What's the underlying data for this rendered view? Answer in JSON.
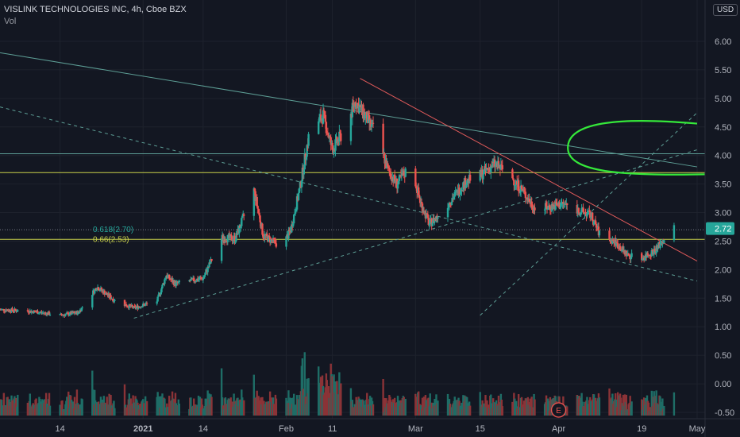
{
  "header": {
    "title": "VISLINK TECHNOLOGIES INC, 4h, Cboe BZX",
    "vol_label": "Vol",
    "currency": "USD"
  },
  "colors": {
    "background": "#131722",
    "up": "#26a69a",
    "down": "#ef5350",
    "vol_up": "#1e6d66",
    "vol_down": "#8b3337",
    "trend_red": "#e05a5a",
    "trend_teal": "#5d9e95",
    "fib_yellow": "#c9d14b",
    "highlight_green": "#35e83a",
    "price_tag": "#26a69a"
  },
  "chart_data": {
    "type": "candlestick",
    "title": "VISLINK TECHNOLOGIES INC, 4h, Cboe BZX",
    "ylim": [
      -0.6,
      6.3
    ],
    "y_ticks": [
      "6.00",
      "5.50",
      "5.00",
      "4.50",
      "4.00",
      "3.50",
      "3.00",
      "2.50",
      "2.00",
      "1.50",
      "1.00",
      "0.50",
      "0.00",
      "-0.50"
    ],
    "x_ticks": [
      {
        "label": "14",
        "date": "2020-12-14"
      },
      {
        "label": "2021",
        "date": "2021-01-01"
      },
      {
        "label": "14",
        "date": "2021-01-14"
      },
      {
        "label": "Feb",
        "date": "2021-02-01"
      },
      {
        "label": "11",
        "date": "2021-02-11"
      },
      {
        "label": "Mar",
        "date": "2021-03-01"
      },
      {
        "label": "15",
        "date": "2021-03-15"
      },
      {
        "label": "Apr",
        "date": "2021-04-01"
      },
      {
        "label": "19",
        "date": "2021-04-19"
      },
      {
        "label": "May",
        "date": "2021-05-01"
      }
    ],
    "date_range": [
      "2020-12-01",
      "2021-05-01"
    ],
    "close_path": [
      [
        "2020-12-01",
        1.3
      ],
      [
        "2020-12-08",
        1.27
      ],
      [
        "2020-12-14",
        1.2
      ],
      [
        "2020-12-18",
        1.25
      ],
      [
        "2020-12-22",
        1.7
      ],
      [
        "2020-12-26",
        1.45
      ],
      [
        "2020-12-30",
        1.33
      ],
      [
        "2021-01-04",
        1.45
      ],
      [
        "2021-01-06",
        1.9
      ],
      [
        "2021-01-08",
        1.75
      ],
      [
        "2021-01-14",
        1.85
      ],
      [
        "2021-01-18",
        2.55
      ],
      [
        "2021-01-21",
        2.55
      ],
      [
        "2021-01-25",
        3.4
      ],
      [
        "2021-01-27",
        2.6
      ],
      [
        "2021-01-31",
        2.4
      ],
      [
        "2021-02-02",
        2.7
      ],
      [
        "2021-02-04",
        3.45
      ],
      [
        "2021-02-06",
        4.4
      ],
      [
        "2021-02-09",
        4.7
      ],
      [
        "2021-02-11",
        4.1
      ],
      [
        "2021-02-14",
        4.5
      ],
      [
        "2021-02-16",
        4.95
      ],
      [
        "2021-02-18",
        4.7
      ],
      [
        "2021-02-21",
        4.3
      ],
      [
        "2021-02-23",
        3.75
      ],
      [
        "2021-02-25",
        3.5
      ],
      [
        "2021-02-28",
        3.85
      ],
      [
        "2021-03-02",
        3.2
      ],
      [
        "2021-03-04",
        2.8
      ],
      [
        "2021-03-06",
        2.95
      ],
      [
        "2021-03-09",
        3.25
      ],
      [
        "2021-03-12",
        3.55
      ],
      [
        "2021-03-15",
        3.65
      ],
      [
        "2021-03-18",
        3.85
      ],
      [
        "2021-03-21",
        3.7
      ],
      [
        "2021-03-24",
        3.4
      ],
      [
        "2021-03-27",
        3.05
      ],
      [
        "2021-03-30",
        3.1
      ],
      [
        "2021-04-02",
        3.15
      ],
      [
        "2021-04-05",
        3.05
      ],
      [
        "2021-04-08",
        2.95
      ],
      [
        "2021-04-10",
        2.6
      ],
      [
        "2021-04-13",
        2.5
      ],
      [
        "2021-04-16",
        2.25
      ],
      [
        "2021-04-19",
        2.2
      ],
      [
        "2021-04-22",
        2.35
      ],
      [
        "2021-04-24",
        2.55
      ],
      [
        "2021-04-26",
        2.72
      ]
    ],
    "fib_levels": [
      {
        "label": "0.618(2.70)",
        "value": 2.7
      },
      {
        "label": "0.66(2.53)",
        "value": 2.53
      }
    ],
    "horizontal_lines": [
      4.03,
      3.7
    ],
    "trendlines": [
      {
        "color": "trend_teal",
        "from": [
          "2020-12-01",
          5.8
        ],
        "to": [
          "2021-05-01",
          3.8
        ],
        "style": "solid"
      },
      {
        "color": "trend_red",
        "from": [
          "2021-02-17",
          5.35
        ],
        "to": [
          "2021-05-01",
          2.15
        ],
        "style": "solid"
      },
      {
        "color": "trend_teal",
        "from": [
          "2020-12-01",
          4.85
        ],
        "to": [
          "2021-05-01",
          1.8
        ],
        "style": "dashed"
      },
      {
        "color": "trend_teal",
        "from": [
          "2020-12-30",
          1.15
        ],
        "to": [
          "2021-05-01",
          4.1
        ],
        "style": "dashed"
      },
      {
        "color": "trend_teal",
        "from": [
          "2021-03-15",
          1.2
        ],
        "to": [
          "2021-05-01",
          4.75
        ],
        "style": "dashed"
      }
    ],
    "highlight_ellipse": {
      "x_from": "2021-04-03",
      "x_to": "2021-05-01",
      "y_top": 4.6,
      "y_bottom": 3.67
    },
    "last_price": {
      "value": 2.72,
      "label": "2.72"
    },
    "earnings_marker": {
      "label": "E",
      "date": "2021-04-01"
    }
  }
}
